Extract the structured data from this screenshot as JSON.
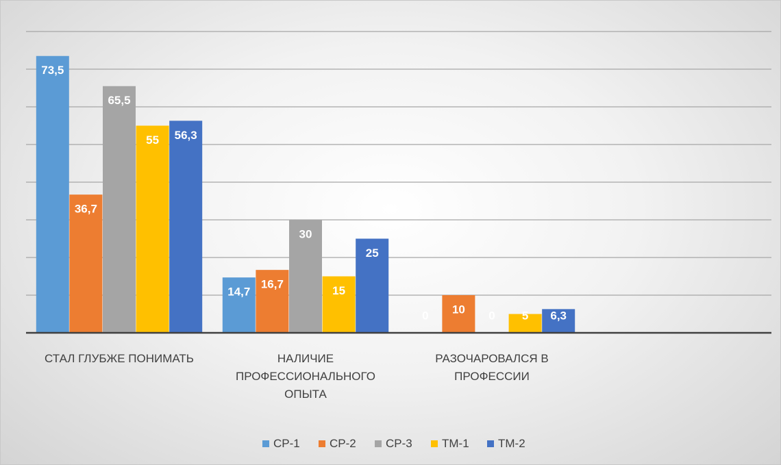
{
  "chart_data": {
    "type": "bar",
    "categories": [
      "СТАЛ ГЛУБЖЕ ПОНИМАТЬ",
      "НАЛИЧИЕ ПРОФЕССИОНАЛЬНОГО ОПЫТА",
      "РАЗОЧАРОВАЛСЯ В ПРОФЕССИИ",
      null
    ],
    "series": [
      {
        "name": "СР-1",
        "color": "#5b9bd5",
        "values": [
          73.5,
          14.7,
          0,
          null
        ],
        "value_labels": [
          "73,5",
          "14,7",
          "0",
          null
        ]
      },
      {
        "name": "СР-2",
        "color": "#ed7d31",
        "values": [
          36.7,
          16.7,
          10,
          null
        ],
        "value_labels": [
          "36,7",
          "16,7",
          "10",
          null
        ]
      },
      {
        "name": "СР-3",
        "color": "#a5a5a5",
        "values": [
          65.5,
          30,
          0,
          null
        ],
        "value_labels": [
          "65,5",
          "30",
          "0",
          null
        ]
      },
      {
        "name": "ТМ-1",
        "color": "#ffc000",
        "values": [
          55,
          15,
          5,
          null
        ],
        "value_labels": [
          "55",
          "15",
          "5",
          null
        ]
      },
      {
        "name": "ТМ-2",
        "color": "#4472c4",
        "values": [
          56.3,
          25,
          6.3,
          null
        ],
        "value_labels": [
          "56,3",
          "25",
          "6,3",
          null
        ]
      }
    ],
    "ylim": [
      0,
      80
    ],
    "yticks": [
      10,
      20,
      30,
      40,
      50,
      60,
      70,
      80
    ],
    "grid": true,
    "legend": "bottom"
  }
}
